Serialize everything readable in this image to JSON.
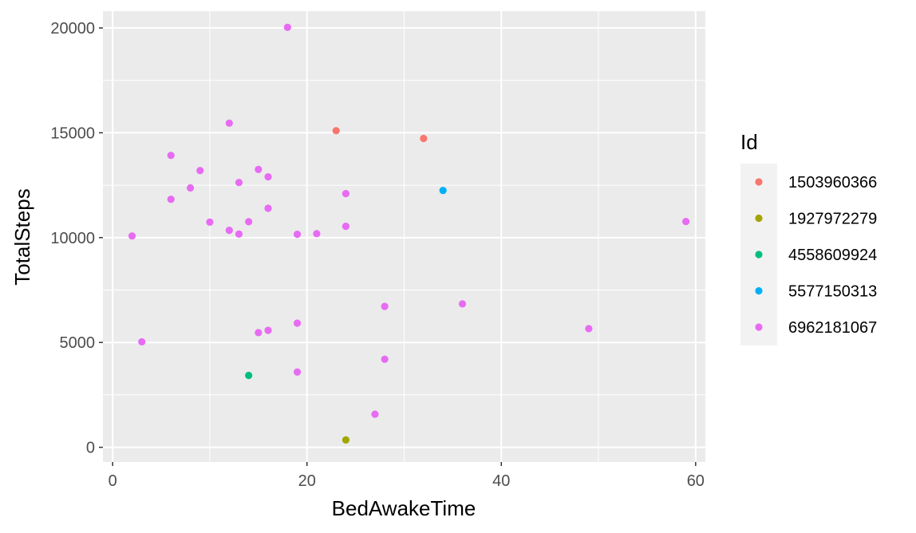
{
  "chart_data": {
    "type": "scatter",
    "xlabel": "BedAwakeTime",
    "ylabel": "TotalSteps",
    "xlim": [
      -1,
      61
    ],
    "ylim": [
      -700,
      20800
    ],
    "x_ticks": [
      0,
      20,
      40,
      60
    ],
    "y_ticks": [
      0,
      5000,
      10000,
      15000,
      20000
    ],
    "x_tick_labels": [
      "0",
      "20",
      "40",
      "60"
    ],
    "y_tick_labels": [
      "0",
      "5000",
      "10000",
      "15000",
      "20000"
    ],
    "grid": true,
    "background": "#ebebeb",
    "legend": {
      "title": "Id",
      "position": "right"
    },
    "series": [
      {
        "name": "1503960366",
        "color": "#f8766d",
        "points": [
          [
            23,
            15100
          ],
          [
            32,
            14730
          ]
        ]
      },
      {
        "name": "1927972279",
        "color": "#a3a500",
        "points": [
          [
            24,
            350
          ]
        ]
      },
      {
        "name": "4558609924",
        "color": "#00bf7d",
        "points": [
          [
            14,
            3430
          ]
        ]
      },
      {
        "name": "5577150313",
        "color": "#00b0f6",
        "points": [
          [
            34,
            12250
          ]
        ]
      },
      {
        "name": "6962181067",
        "color": "#e76bf3",
        "points": [
          [
            18,
            20030
          ],
          [
            12,
            15460
          ],
          [
            6,
            13920
          ],
          [
            9,
            13200
          ],
          [
            15,
            13250
          ],
          [
            16,
            12900
          ],
          [
            13,
            12630
          ],
          [
            8,
            12370
          ],
          [
            24,
            12100
          ],
          [
            6,
            11830
          ],
          [
            16,
            11400
          ],
          [
            10,
            10740
          ],
          [
            14,
            10760
          ],
          [
            59,
            10770
          ],
          [
            24,
            10540
          ],
          [
            12,
            10350
          ],
          [
            2,
            10080
          ],
          [
            13,
            10170
          ],
          [
            19,
            10160
          ],
          [
            21,
            10190
          ],
          [
            28,
            6720
          ],
          [
            36,
            6840
          ],
          [
            19,
            5920
          ],
          [
            16,
            5580
          ],
          [
            15,
            5470
          ],
          [
            49,
            5660
          ],
          [
            3,
            5030
          ],
          [
            28,
            4200
          ],
          [
            19,
            3590
          ],
          [
            27,
            1580
          ]
        ]
      }
    ]
  }
}
